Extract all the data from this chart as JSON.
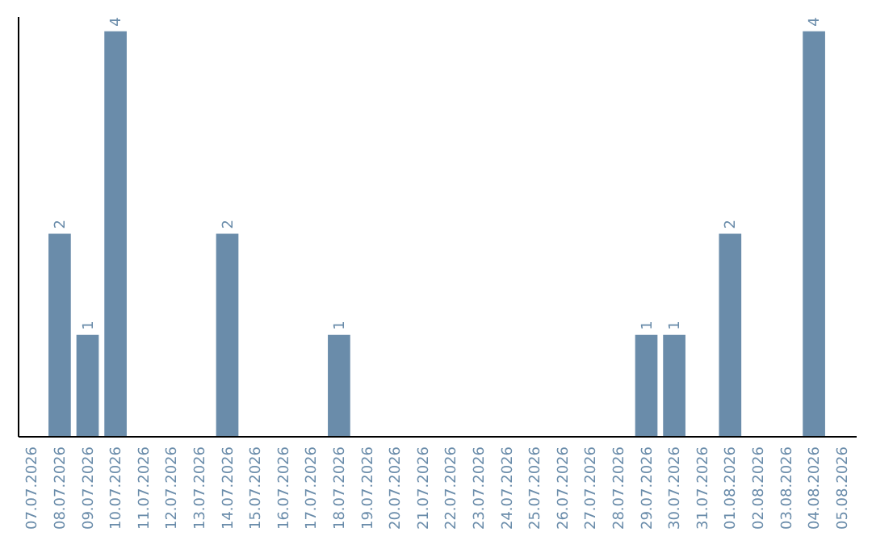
{
  "chart_data": {
    "type": "bar",
    "categories": [
      "07.07.2026",
      "08.07.2026",
      "09.07.2026",
      "10.07.2026",
      "11.07.2026",
      "12.07.2026",
      "13.07.2026",
      "14.07.2026",
      "15.07.2026",
      "16.07.2026",
      "17.07.2026",
      "18.07.2026",
      "19.07.2026",
      "20.07.2026",
      "21.07.2026",
      "22.07.2026",
      "23.07.2026",
      "24.07.2026",
      "25.07.2026",
      "26.07.2026",
      "27.07.2026",
      "28.07.2026",
      "29.07.2026",
      "30.07.2026",
      "31.07.2026",
      "01.08.2026",
      "02.08.2026",
      "03.08.2026",
      "04.08.2026",
      "05.08.2026"
    ],
    "values": [
      0,
      2,
      1,
      4,
      0,
      0,
      0,
      2,
      0,
      0,
      0,
      1,
      0,
      0,
      0,
      0,
      0,
      0,
      0,
      0,
      0,
      0,
      1,
      1,
      0,
      2,
      0,
      0,
      4,
      0
    ],
    "value_labels": [
      null,
      "2",
      "1",
      "4",
      null,
      null,
      null,
      "2",
      null,
      null,
      null,
      "1",
      null,
      null,
      null,
      null,
      null,
      null,
      null,
      null,
      null,
      null,
      "1",
      "1",
      null,
      "2",
      null,
      null,
      "4",
      null
    ],
    "color": "#6a8caa",
    "ylim": [
      0,
      4.15
    ],
    "tick_labels": "x",
    "grid": false
  }
}
